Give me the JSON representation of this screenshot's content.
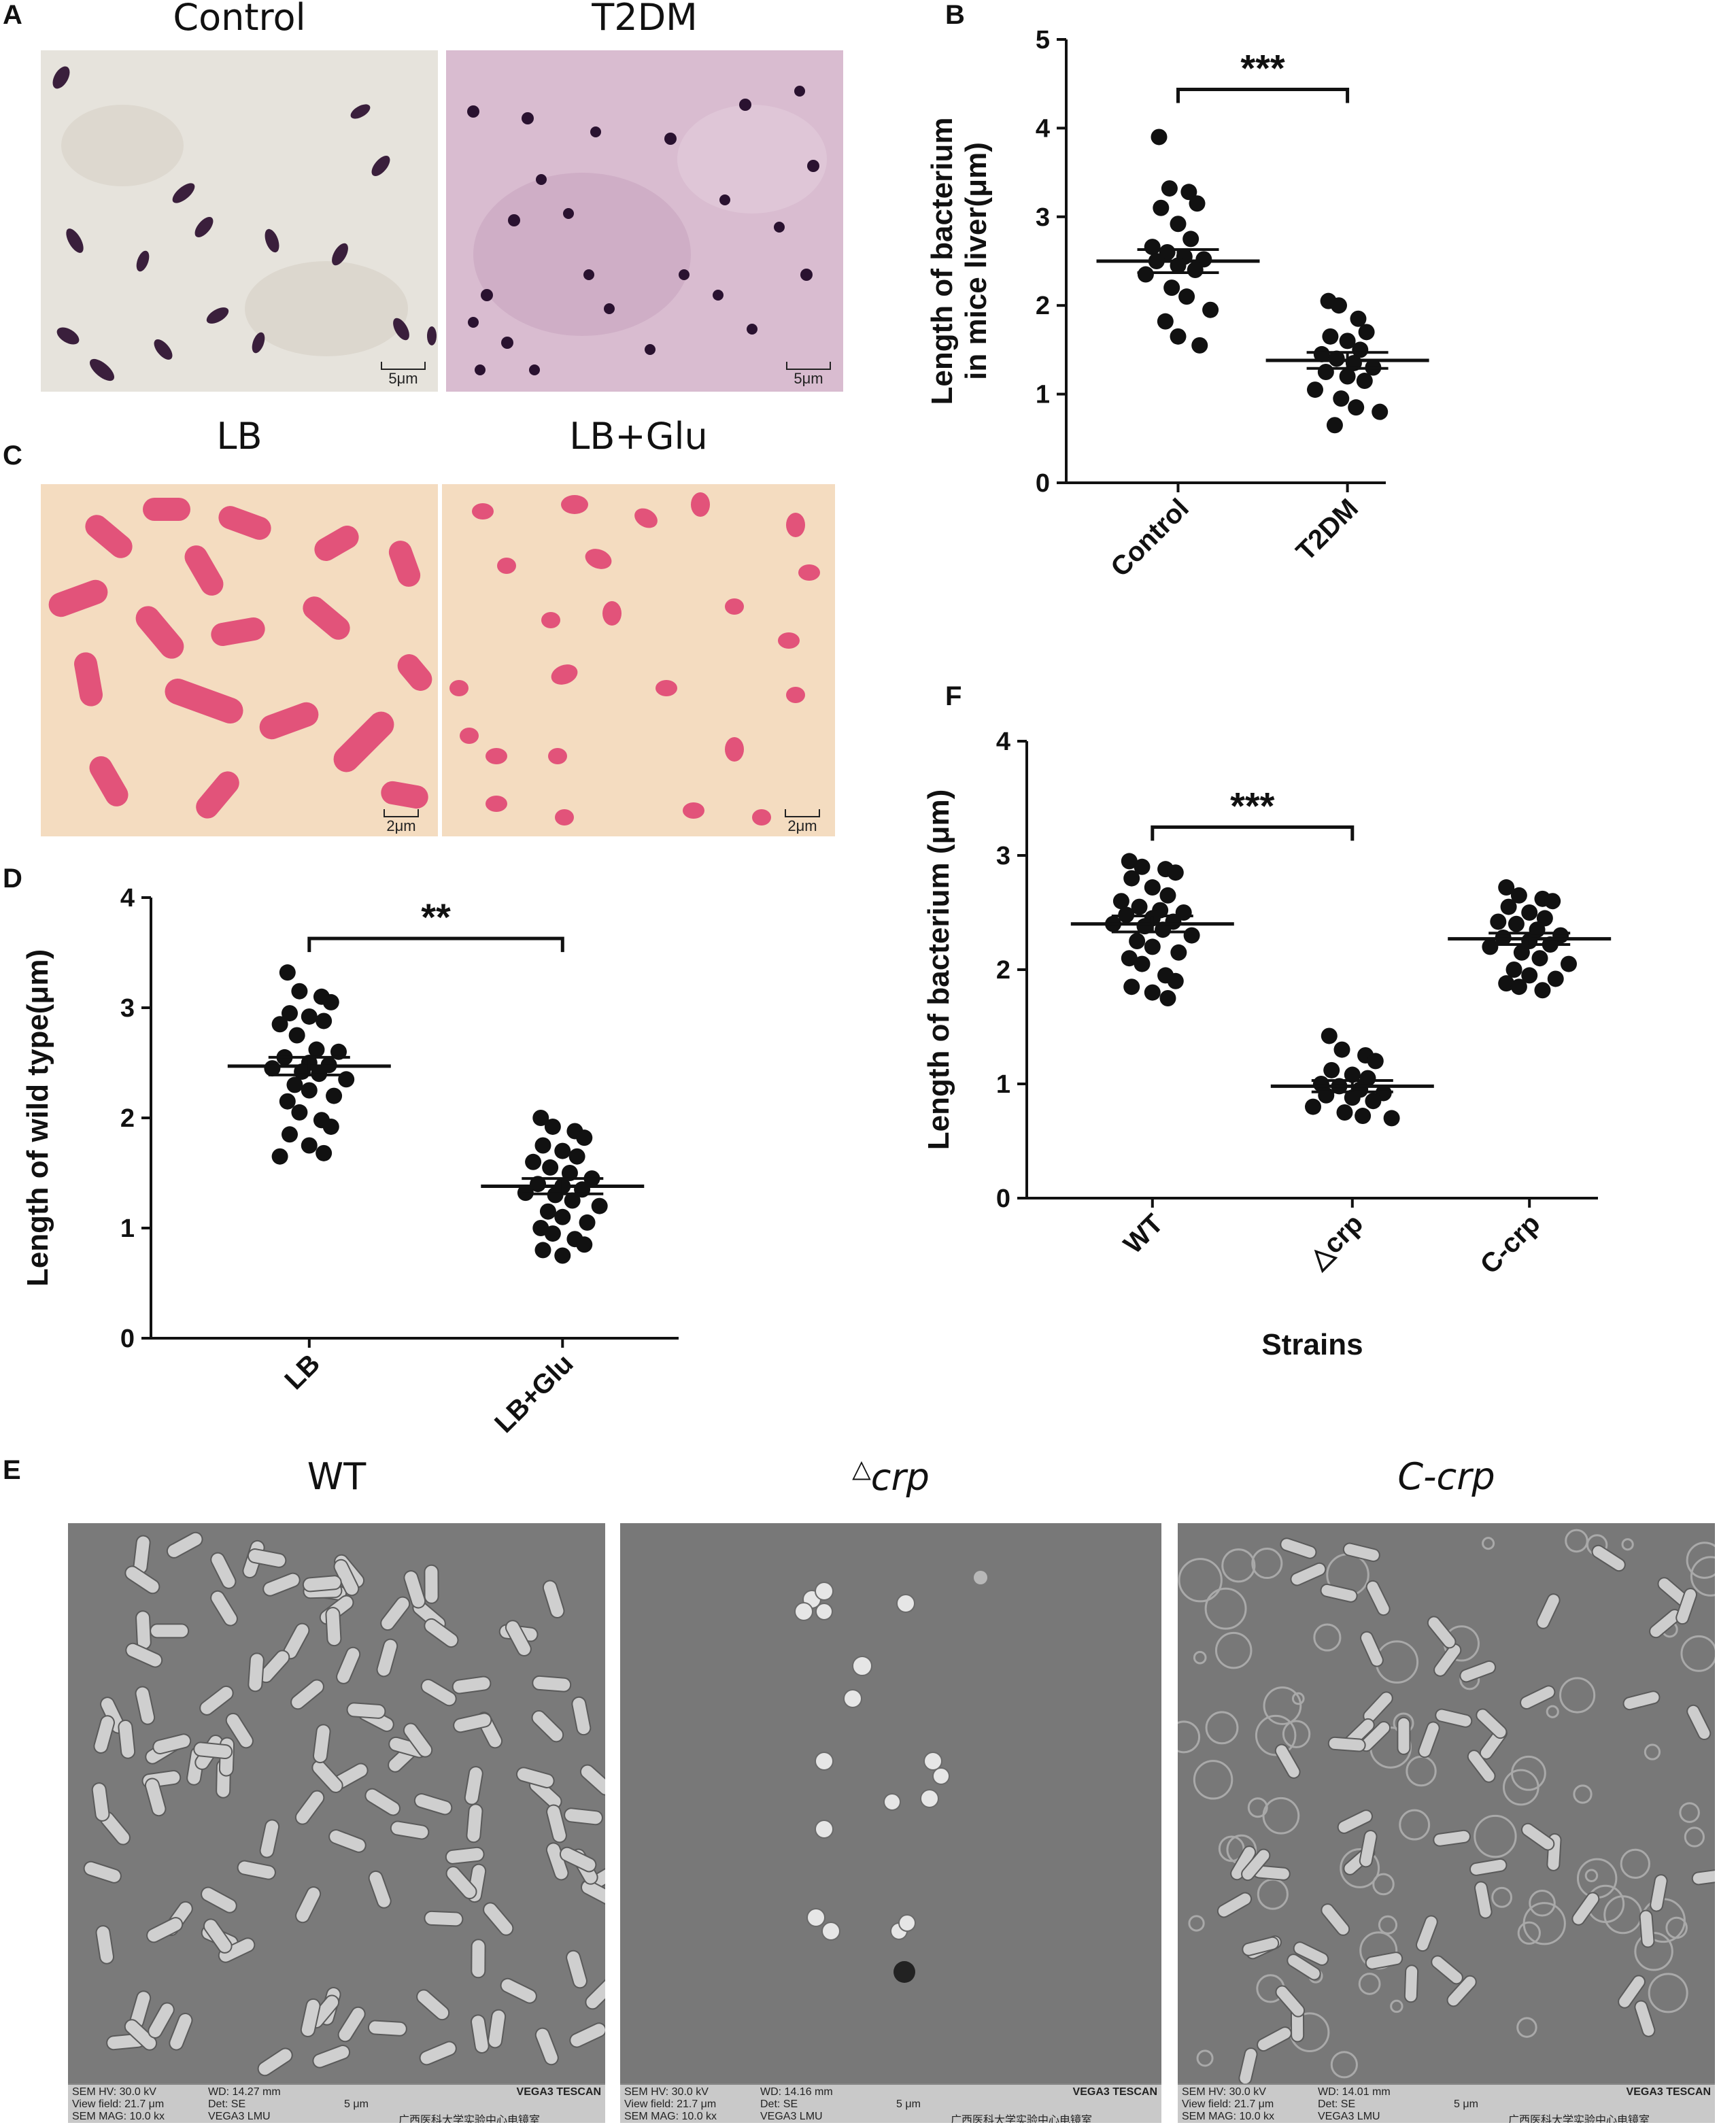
{
  "panels": {
    "A": {
      "letter": "A",
      "images": [
        {
          "title": "Control",
          "scale_label": "5μm"
        },
        {
          "title": "T2DM",
          "scale_label": "5μm"
        }
      ]
    },
    "B": {
      "letter": "B"
    },
    "C": {
      "letter": "C",
      "images": [
        {
          "title": "LB",
          "scale_label": "2μm"
        },
        {
          "title": "LB+Glu",
          "scale_label": "2μm"
        }
      ]
    },
    "D": {
      "letter": "D"
    },
    "E": {
      "letter": "E",
      "images": [
        {
          "title": "WT",
          "sem": {
            "hv": "SEM HV: 30.0 kV",
            "wd": "WD: 14.27 mm",
            "brand": "VEGA3 TESCAN",
            "vf": "View field: 21.7 μm",
            "det": "Det: SE",
            "scale": "5 μm",
            "mag": "SEM MAG: 10.0 kx",
            "model": "VEGA3 LMU",
            "lab": "广西医科大学实验中心电镜室"
          }
        },
        {
          "title_prefix": "△",
          "title": "crp",
          "sem": {
            "hv": "SEM HV: 30.0 kV",
            "wd": "WD: 14.16 mm",
            "brand": "VEGA3 TESCAN",
            "vf": "View field: 21.7 μm",
            "det": "Det: SE",
            "scale": "5 μm",
            "mag": "SEM MAG: 10.0 kx",
            "model": "VEGA3 LMU",
            "lab": "广西医科大学实验中心电镜室"
          }
        },
        {
          "title": "C-crp",
          "sem": {
            "hv": "SEM HV: 30.0 kV",
            "wd": "WD: 14.01 mm",
            "brand": "VEGA3 TESCAN",
            "vf": "View field: 21.7 μm",
            "det": "Det: SE",
            "scale": "5 μm",
            "mag": "SEM MAG: 10.0 kx",
            "model": "VEGA3 LMU",
            "lab": "广西医科大学实验中心电镜室"
          }
        }
      ]
    },
    "F": {
      "letter": "F"
    }
  },
  "chart_data": [
    {
      "id": "B",
      "type": "scatter",
      "ylabel": "Length of bacterium in mice liver(μm)",
      "ylabel_lines": [
        "Length of bacterium",
        "in mice liver(μm)"
      ],
      "xlabel": "",
      "categories": [
        "Control",
        "T2DM"
      ],
      "ylim": [
        0,
        5
      ],
      "yticks": [
        0,
        1,
        2,
        3,
        4,
        5
      ],
      "mean": [
        2.5,
        1.38
      ],
      "sem": [
        0.13,
        0.09
      ],
      "points": [
        [
          3.9,
          3.32,
          3.28,
          3.15,
          3.1,
          2.92,
          2.75,
          2.66,
          2.6,
          2.55,
          2.52,
          2.5,
          2.45,
          2.4,
          2.35,
          2.2,
          2.1,
          1.95,
          1.82,
          1.65,
          1.55
        ],
        [
          2.05,
          2.0,
          1.85,
          1.7,
          1.65,
          1.6,
          1.5,
          1.45,
          1.4,
          1.35,
          1.3,
          1.25,
          1.2,
          1.15,
          1.05,
          0.95,
          0.85,
          0.8,
          0.65
        ]
      ],
      "significance": "***",
      "significance_between": [
        "Control",
        "T2DM"
      ]
    },
    {
      "id": "D",
      "type": "scatter",
      "ylabel": "Length of wild type(μm)",
      "xlabel": "",
      "categories": [
        "LB",
        "LB+Glu"
      ],
      "ylim": [
        0,
        4
      ],
      "yticks": [
        0,
        1,
        2,
        3,
        4
      ],
      "mean": [
        2.47,
        1.38
      ],
      "sem": [
        0.08,
        0.07
      ],
      "points": [
        [
          3.32,
          3.15,
          3.1,
          3.05,
          2.95,
          2.92,
          2.88,
          2.85,
          2.75,
          2.62,
          2.6,
          2.55,
          2.5,
          2.48,
          2.45,
          2.42,
          2.4,
          2.35,
          2.3,
          2.25,
          2.2,
          2.15,
          2.05,
          1.98,
          1.92,
          1.85,
          1.75,
          1.68,
          1.65
        ],
        [
          2.0,
          1.92,
          1.88,
          1.82,
          1.75,
          1.7,
          1.65,
          1.6,
          1.55,
          1.5,
          1.45,
          1.4,
          1.38,
          1.35,
          1.32,
          1.3,
          1.25,
          1.2,
          1.15,
          1.1,
          1.05,
          1.0,
          0.95,
          0.9,
          0.85,
          0.8,
          0.75
        ]
      ],
      "significance": "**",
      "significance_between": [
        "LB",
        "LB+Glu"
      ]
    },
    {
      "id": "F",
      "type": "scatter",
      "ylabel": "Length of bacterium (μm)",
      "xlabel": "Strains",
      "categories": [
        "WT",
        "△crp",
        "C-crp"
      ],
      "ylim": [
        0,
        4
      ],
      "yticks": [
        0,
        1,
        2,
        3,
        4
      ],
      "mean": [
        2.4,
        0.98,
        2.27
      ],
      "sem": [
        0.07,
        0.05,
        0.05
      ],
      "points": [
        [
          2.95,
          2.9,
          2.88,
          2.85,
          2.8,
          2.72,
          2.65,
          2.6,
          2.55,
          2.52,
          2.5,
          2.48,
          2.45,
          2.42,
          2.4,
          2.38,
          2.35,
          2.3,
          2.25,
          2.2,
          2.15,
          2.1,
          2.05,
          1.95,
          1.9,
          1.85,
          1.8,
          1.75
        ],
        [
          1.42,
          1.3,
          1.25,
          1.2,
          1.12,
          1.08,
          1.05,
          1.0,
          0.98,
          0.95,
          0.92,
          0.9,
          0.88,
          0.85,
          0.8,
          0.75,
          0.72,
          0.7
        ],
        [
          2.72,
          2.65,
          2.62,
          2.6,
          2.55,
          2.5,
          2.45,
          2.42,
          2.4,
          2.35,
          2.3,
          2.28,
          2.25,
          2.22,
          2.2,
          2.15,
          2.1,
          2.05,
          2.0,
          1.95,
          1.92,
          1.88,
          1.85,
          1.82
        ]
      ],
      "significance": "***",
      "significance_between": [
        "WT",
        "△crp"
      ]
    }
  ]
}
